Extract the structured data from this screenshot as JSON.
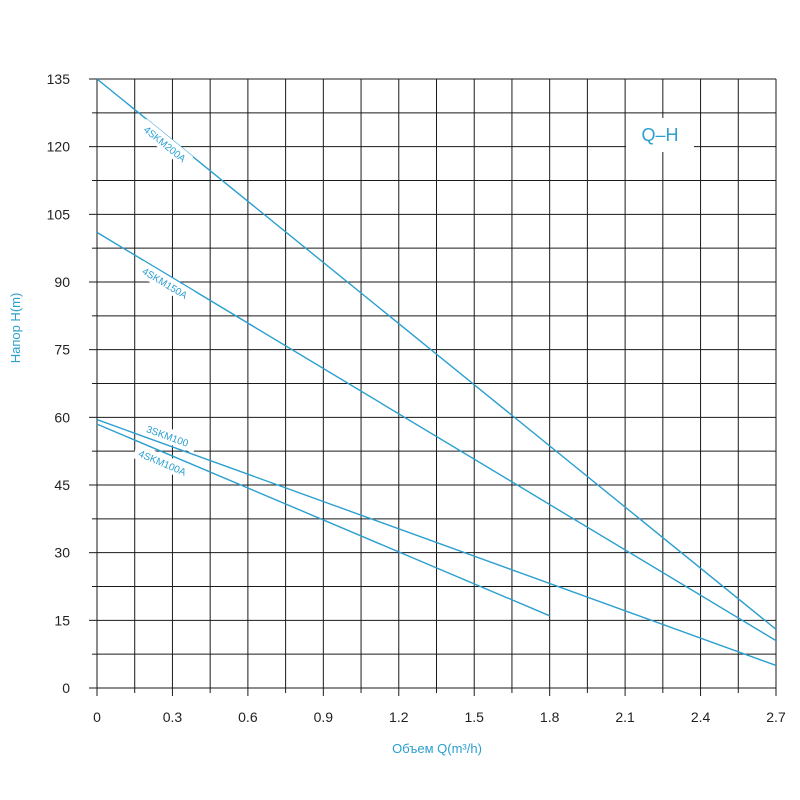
{
  "chart_data": {
    "type": "line",
    "title": "Q–H",
    "xlabel": "Объем Q(m³/h)",
    "ylabel": "Напор H(m)",
    "xlim": [
      0,
      2.7
    ],
    "ylim": [
      0,
      135
    ],
    "x_ticks": [
      "0",
      "0.3",
      "0.6",
      "0.9",
      "1.2",
      "1.5",
      "1.8",
      "2.1",
      "2.4",
      "2.7"
    ],
    "y_ticks": [
      "0",
      "15",
      "30",
      "45",
      "60",
      "75",
      "90",
      "105",
      "120",
      "135"
    ],
    "grid": true,
    "series": [
      {
        "name": "4SKM200A",
        "x": [
          0,
          2.7
        ],
        "y": [
          135,
          13
        ]
      },
      {
        "name": "4SKM150A",
        "x": [
          0,
          2.7
        ],
        "y": [
          101,
          10.5
        ]
      },
      {
        "name": "3SKM100",
        "x": [
          0,
          2.7
        ],
        "y": [
          59.5,
          5
        ]
      },
      {
        "name": "4SKM100A",
        "x": [
          0,
          1.8
        ],
        "y": [
          58.5,
          16
        ]
      }
    ]
  },
  "colors": {
    "line": "#2a9fd0",
    "grid": "#1a1a1a",
    "text": "#222222",
    "accent": "#2a9fd0"
  }
}
